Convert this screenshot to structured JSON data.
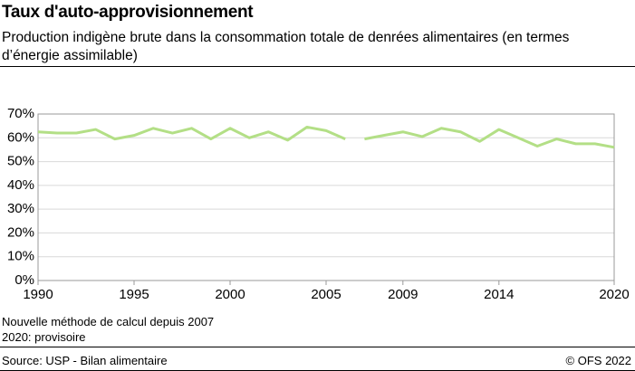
{
  "chart_data": {
    "type": "line",
    "title": "Taux d'auto-approvisionnement",
    "subtitle": "Production indigène brute dans la consommation totale de denrées alimentaires (en termes d’énergie assimilable)",
    "notes": [
      "Nouvelle méthode de calcul depuis 2007",
      "2020: provisoire"
    ],
    "source": "Source: USP - Bilan alimentaire",
    "copyright": "© OFS 2022",
    "series": [
      {
        "color": "#b3df86",
        "x": [
          1990,
          1991,
          1992,
          1993,
          1994,
          1995,
          1996,
          1997,
          1998,
          1999,
          2000,
          2001,
          2002,
          2003,
          2004,
          2005,
          2006
        ],
        "values": [
          62.5,
          62,
          62,
          63.5,
          59.5,
          61,
          64,
          62,
          64,
          59.5,
          64,
          60,
          62.5,
          59,
          64.5,
          63,
          59.5
        ]
      },
      {
        "color": "#b3df86",
        "x": [
          2007,
          2008,
          2009,
          2010,
          2011,
          2012,
          2013,
          2014,
          2015,
          2016,
          2017,
          2018,
          2019,
          2020
        ],
        "values": [
          59.5,
          61,
          62.5,
          60.5,
          64,
          62.5,
          58.5,
          63.5,
          60,
          56.5,
          59.5,
          57.5,
          57.5,
          56
        ]
      }
    ],
    "xlim": [
      1990,
      2020
    ],
    "xticks": [
      1990,
      1995,
      2000,
      2005,
      2009,
      2014,
      2020
    ],
    "ylim": [
      0,
      70
    ],
    "yticks": [
      {
        "value": 0,
        "label": "0%"
      },
      {
        "value": 10,
        "label": "10%"
      },
      {
        "value": 20,
        "label": "20%"
      },
      {
        "value": 30,
        "label": "30%"
      },
      {
        "value": 40,
        "label": "40%"
      },
      {
        "value": 50,
        "label": "50%"
      },
      {
        "value": 60,
        "label": "60%"
      },
      {
        "value": 70,
        "label": "70%"
      }
    ],
    "grid": true
  }
}
